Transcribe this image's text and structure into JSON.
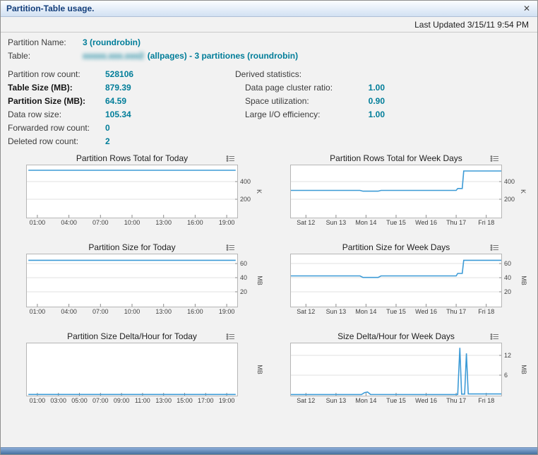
{
  "window": {
    "title": "Partition-Table usage.",
    "close_icon": "✕",
    "last_updated": "Last Updated 3/15/11 9:54 PM"
  },
  "info": {
    "partition_name_label": "Partition Name:",
    "partition_name_value": "3 (roundrobin)",
    "table_label": "Table:",
    "table_name_redacted": "xxxxx.xxx.xxx2",
    "table_value": "(allpages) - 3 partitiones (roundrobin)"
  },
  "stats": {
    "left": [
      {
        "label": "Partition row count:",
        "value": "528106"
      },
      {
        "label": "Table Size (MB):",
        "value": "879.39"
      },
      {
        "label": "Partition Size (MB):",
        "value": "64.59"
      },
      {
        "label": "Data row size:",
        "value": "105.34"
      },
      {
        "label": "Forwarded row count:",
        "value": "0"
      },
      {
        "label": "Deleted row count:",
        "value": "2"
      }
    ],
    "derived_title": "Derived statistics:",
    "derived": [
      {
        "label": "Data page cluster ratio:",
        "value": "1.00"
      },
      {
        "label": "Space utilization:",
        "value": "0.90"
      },
      {
        "label": "Large I/O efficiency:",
        "value": "1.00"
      }
    ]
  },
  "colors": {
    "accent": "#007d99",
    "line": "#3d9bd6",
    "title": "#123d7a",
    "chart_border": "#b6b6b6",
    "gridline": "#e0e0e0"
  },
  "chart_data": [
    {
      "type": "line",
      "title": "Partition Rows Total for Today",
      "unit": "K",
      "ylim": [
        0,
        560
      ],
      "yticks": [
        200,
        400
      ],
      "xlim": [
        0,
        20
      ],
      "xticks": [
        {
          "label": "01:00",
          "x": 1
        },
        {
          "label": "04:00",
          "x": 4
        },
        {
          "label": "07:00",
          "x": 7
        },
        {
          "label": "10:00",
          "x": 10
        },
        {
          "label": "13:00",
          "x": 13
        },
        {
          "label": "16:00",
          "x": 16
        },
        {
          "label": "19:00",
          "x": 19
        }
      ],
      "series": [
        {
          "name": "partition-rows",
          "points": [
            [
              0.15,
              528
            ],
            [
              19.85,
              528
            ]
          ]
        }
      ]
    },
    {
      "type": "line",
      "title": "Partition Rows Total for Week Days",
      "unit": "K",
      "ylim": [
        0,
        560
      ],
      "yticks": [
        200,
        400
      ],
      "xlim": [
        0,
        7
      ],
      "xticks": [
        {
          "label": "Sat 12",
          "x": 0.5
        },
        {
          "label": "Sun 13",
          "x": 1.5
        },
        {
          "label": "Mon 14",
          "x": 2.5
        },
        {
          "label": "Tue 15",
          "x": 3.5
        },
        {
          "label": "Wed 16",
          "x": 4.5
        },
        {
          "label": "Thu 17",
          "x": 5.5
        },
        {
          "label": "Fri 18",
          "x": 6.5
        }
      ],
      "series": [
        {
          "name": "partition-rows",
          "points": [
            [
              0,
              300
            ],
            [
              2.3,
              300
            ],
            [
              2.4,
              291
            ],
            [
              2.9,
              291
            ],
            [
              3.0,
              300
            ],
            [
              5.5,
              300
            ],
            [
              5.55,
              322
            ],
            [
              5.7,
              322
            ],
            [
              5.75,
              520
            ],
            [
              7,
              520
            ]
          ]
        }
      ]
    },
    {
      "type": "line",
      "title": "Partition Size for Today",
      "unit": "MB",
      "ylim": [
        0,
        70
      ],
      "yticks": [
        20,
        40,
        60
      ],
      "xlim": [
        0,
        20
      ],
      "xticks": [
        {
          "label": "01:00",
          "x": 1
        },
        {
          "label": "04:00",
          "x": 4
        },
        {
          "label": "07:00",
          "x": 7
        },
        {
          "label": "10:00",
          "x": 10
        },
        {
          "label": "13:00",
          "x": 13
        },
        {
          "label": "16:00",
          "x": 16
        },
        {
          "label": "19:00",
          "x": 19
        }
      ],
      "series": [
        {
          "name": "partition-size",
          "points": [
            [
              0.15,
              64.59
            ],
            [
              19.85,
              64.59
            ]
          ]
        }
      ]
    },
    {
      "type": "line",
      "title": "Partition Size for Week Days",
      "unit": "MB",
      "ylim": [
        0,
        70
      ],
      "yticks": [
        20,
        40,
        60
      ],
      "xlim": [
        0,
        7
      ],
      "xticks": [
        {
          "label": "Sat 12",
          "x": 0.5
        },
        {
          "label": "Sun 13",
          "x": 1.5
        },
        {
          "label": "Mon 14",
          "x": 2.5
        },
        {
          "label": "Tue 15",
          "x": 3.5
        },
        {
          "label": "Wed 16",
          "x": 4.5
        },
        {
          "label": "Thu 17",
          "x": 5.5
        },
        {
          "label": "Fri 18",
          "x": 6.5
        }
      ],
      "series": [
        {
          "name": "partition-size",
          "points": [
            [
              0,
              42.5
            ],
            [
              2.3,
              42.5
            ],
            [
              2.4,
              40.3
            ],
            [
              2.9,
              40.3
            ],
            [
              3.0,
              42.5
            ],
            [
              5.5,
              42.5
            ],
            [
              5.55,
              46
            ],
            [
              5.7,
              46
            ],
            [
              5.75,
              64.6
            ],
            [
              7,
              64.6
            ]
          ]
        }
      ]
    },
    {
      "type": "line",
      "title": "Partition Size Delta/Hour for Today",
      "unit": "MB",
      "ylim": [
        0,
        1
      ],
      "yticks": [],
      "xlim": [
        0,
        20
      ],
      "xticks": [
        {
          "label": "01:00",
          "x": 1
        },
        {
          "label": "03:00",
          "x": 3
        },
        {
          "label": "05:00",
          "x": 5
        },
        {
          "label": "07:00",
          "x": 7
        },
        {
          "label": "09:00",
          "x": 9
        },
        {
          "label": "11:00",
          "x": 11
        },
        {
          "label": "13:00",
          "x": 13
        },
        {
          "label": "15:00",
          "x": 15
        },
        {
          "label": "17:00",
          "x": 17
        },
        {
          "label": "19:00",
          "x": 19
        }
      ],
      "series": [
        {
          "name": "size-delta",
          "points": [
            [
              0.15,
              0.01
            ],
            [
              19.85,
              0.01
            ]
          ]
        }
      ]
    },
    {
      "type": "line",
      "title": "Size Delta/Hour for Week Days",
      "unit": "MB",
      "ylim": [
        0,
        15
      ],
      "yticks": [
        6,
        12
      ],
      "xlim": [
        0,
        7
      ],
      "xticks": [
        {
          "label": "Sat 12",
          "x": 0.5
        },
        {
          "label": "Sun 13",
          "x": 1.5
        },
        {
          "label": "Mon 14",
          "x": 2.5
        },
        {
          "label": "Tue 15",
          "x": 3.5
        },
        {
          "label": "Wed 16",
          "x": 4.5
        },
        {
          "label": "Thu 17",
          "x": 5.5
        },
        {
          "label": "Fri 18",
          "x": 6.5
        }
      ],
      "series": [
        {
          "name": "size-delta",
          "points": [
            [
              0,
              0.12
            ],
            [
              2.35,
              0.12
            ],
            [
              2.45,
              0.7
            ],
            [
              2.55,
              0.9
            ],
            [
              2.65,
              0.15
            ],
            [
              5.45,
              0.12
            ],
            [
              5.55,
              0.15
            ],
            [
              5.62,
              14.3
            ],
            [
              5.68,
              0.25
            ],
            [
              5.78,
              0.25
            ],
            [
              5.84,
              12.6
            ],
            [
              5.9,
              0.3
            ],
            [
              7,
              0.3
            ]
          ]
        }
      ]
    }
  ]
}
